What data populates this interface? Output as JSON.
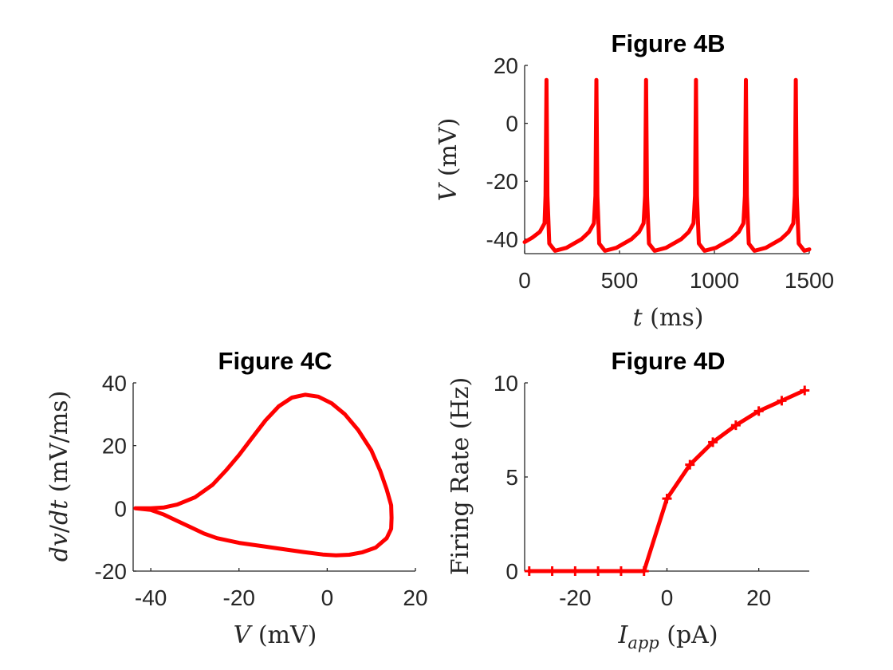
{
  "chart_data": [
    {
      "id": "4B",
      "type": "line",
      "title": "Figure 4B",
      "xlabel": "t (ms)",
      "ylabel": "V (mV)",
      "xlim": [
        0,
        1500
      ],
      "ylim": [
        -45,
        20
      ],
      "xticks": [
        0,
        500,
        1000,
        1500
      ],
      "yticks": [
        -40,
        -20,
        0,
        20
      ],
      "color": "#ff0000",
      "grid": false,
      "spike_times": [
        115,
        378,
        640,
        903,
        1166,
        1429
      ],
      "series": [
        {
          "x": [
            0,
            40,
            80,
            105,
            110,
            115,
            120,
            130,
            160,
            220,
            300,
            340,
            365,
            373,
            378,
            383,
            393,
            423,
            483,
            563,
            603,
            627,
            635,
            640,
            645,
            655,
            685,
            745,
            825,
            865,
            890,
            898,
            903,
            908,
            918,
            948,
            1008,
            1088,
            1128,
            1153,
            1161,
            1166,
            1171,
            1181,
            1211,
            1271,
            1351,
            1391,
            1416,
            1424,
            1429,
            1434,
            1444,
            1474,
            1500
          ],
          "values": [
            -41,
            -39.5,
            -37.5,
            -34.5,
            -25,
            15,
            -25,
            -41.5,
            -44,
            -43,
            -40,
            -37.5,
            -34.5,
            -25,
            15,
            -25,
            -41.5,
            -44,
            -43,
            -40,
            -37.5,
            -34.5,
            -25,
            15,
            -25,
            -41.5,
            -44,
            -43,
            -40,
            -37.5,
            -34.5,
            -25,
            15,
            -25,
            -41.5,
            -44,
            -43,
            -40,
            -37.5,
            -34.5,
            -25,
            15,
            -25,
            -41.5,
            -44,
            -43,
            -40,
            -37.5,
            -34.5,
            -25,
            15,
            -25,
            -41.5,
            -44,
            -43.5
          ]
        }
      ]
    },
    {
      "id": "4C",
      "type": "line",
      "title": "Figure 4C",
      "xlabel": "V (mV)",
      "ylabel": "dv/dt (mV/ms)",
      "xlim": [
        -44,
        20
      ],
      "ylim": [
        -20,
        40
      ],
      "xticks": [
        -40,
        -20,
        0,
        20
      ],
      "yticks": [
        -20,
        0,
        20,
        40
      ],
      "color": "#ff0000",
      "grid": false,
      "series": [
        {
          "x": [
            -43.5,
            -40,
            -37,
            -34,
            -30,
            -26,
            -23,
            -20,
            -17,
            -14,
            -11,
            -8,
            -5,
            -2,
            1,
            4,
            7,
            10,
            12,
            13.5,
            14.5,
            14.6,
            14.5,
            13.5,
            11,
            8,
            5,
            2,
            -1,
            -5,
            -10,
            -15,
            -20,
            -25,
            -28,
            -31,
            -34,
            -37,
            -40,
            -43.5
          ],
          "values": [
            0,
            0,
            0.3,
            1.2,
            3.5,
            7.5,
            12,
            17,
            22.5,
            28,
            32.5,
            35.3,
            36.2,
            35.6,
            33.5,
            30,
            25,
            18.5,
            12,
            6,
            1,
            -3,
            -6.5,
            -9.5,
            -12.5,
            -14,
            -14.8,
            -15,
            -14.7,
            -14,
            -13,
            -12,
            -11,
            -9.5,
            -8,
            -6,
            -4,
            -2,
            -0.5,
            0
          ]
        }
      ]
    },
    {
      "id": "4D",
      "type": "line",
      "title": "Figure 4D",
      "xlabel": "I_app (pA)",
      "xlabel_main": "I",
      "xlabel_sub": "app",
      "xlabel_unit": "(pA)",
      "ylabel": "Firing Rate (Hz)",
      "xlim": [
        -31,
        31
      ],
      "ylim": [
        0,
        10
      ],
      "xticks": [
        -20,
        0,
        20
      ],
      "yticks": [
        0,
        5,
        10
      ],
      "color": "#ff0000",
      "grid": false,
      "marker": "plus",
      "series": [
        {
          "x": [
            -30,
            -25,
            -20,
            -15,
            -10,
            -5,
            0,
            5,
            10,
            15,
            20,
            25,
            30
          ],
          "values": [
            0,
            0,
            0,
            0,
            0,
            0,
            3.85,
            5.65,
            6.85,
            7.75,
            8.5,
            9.05,
            9.6
          ]
        }
      ]
    }
  ]
}
